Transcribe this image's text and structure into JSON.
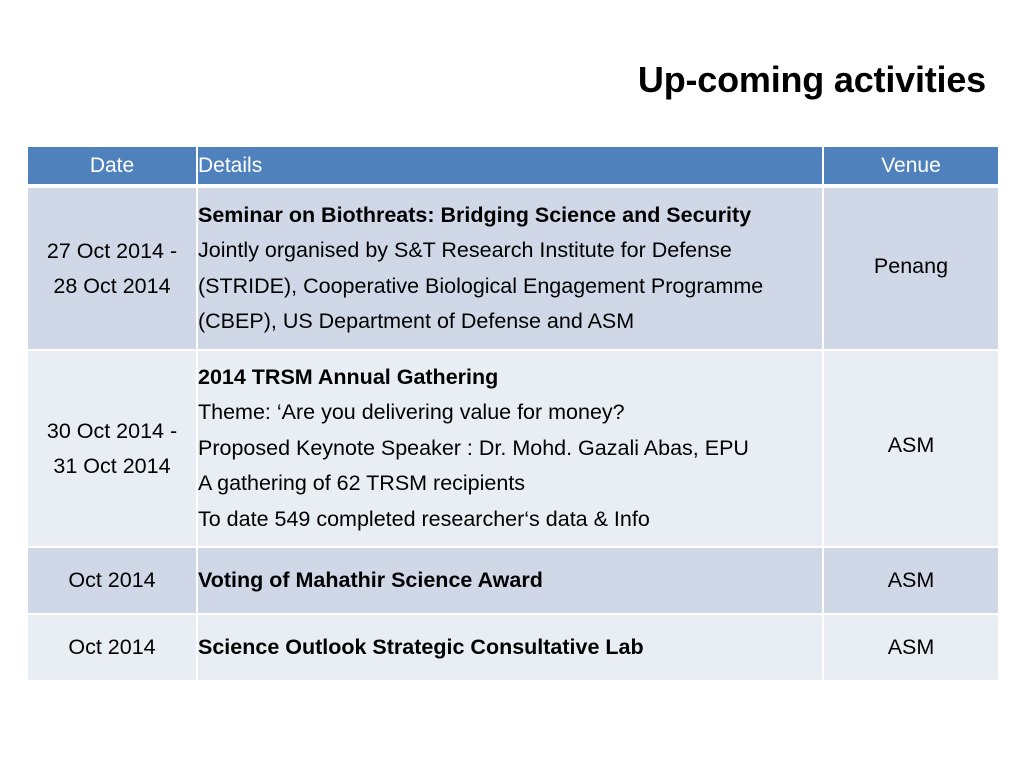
{
  "title": "Up-coming activities",
  "table": {
    "headers": {
      "date": "Date",
      "details": "Details",
      "venue": "Venue"
    },
    "rows": [
      {
        "date_lines": [
          "27 Oct 2014 -",
          "28 Oct 2014"
        ],
        "heading": "Seminar on Biothreats: Bridging Science and Security",
        "lines": [
          "Jointly organised by S&T Research Institute for Defense",
          "(STRIDE), Cooperative Biological Engagement Programme",
          "(CBEP), US Department of Defense and ASM"
        ],
        "venue": "Penang"
      },
      {
        "date_lines": [
          "30 Oct 2014 -",
          "31 Oct 2014"
        ],
        "heading": "2014 TRSM Annual Gathering",
        "lines": [
          "Theme: ‘Are you delivering value for money?",
          "Proposed Keynote Speaker : Dr. Mohd. Gazali Abas, EPU",
          "A gathering of 62 TRSM recipients",
          "To date 549 completed researcher‘s data & Info"
        ],
        "venue": "ASM"
      },
      {
        "date_lines": [
          "Oct 2014"
        ],
        "heading": "Voting of Mahathir Science Award",
        "lines": [],
        "venue": "ASM"
      },
      {
        "date_lines": [
          "Oct 2014"
        ],
        "heading": "Science Outlook Strategic Consultative Lab",
        "lines": [],
        "venue": "ASM"
      }
    ]
  },
  "colors": {
    "header_bg": "#4f81bd",
    "row_dark": "#d0d8e8",
    "row_light": "#e9edf4"
  }
}
